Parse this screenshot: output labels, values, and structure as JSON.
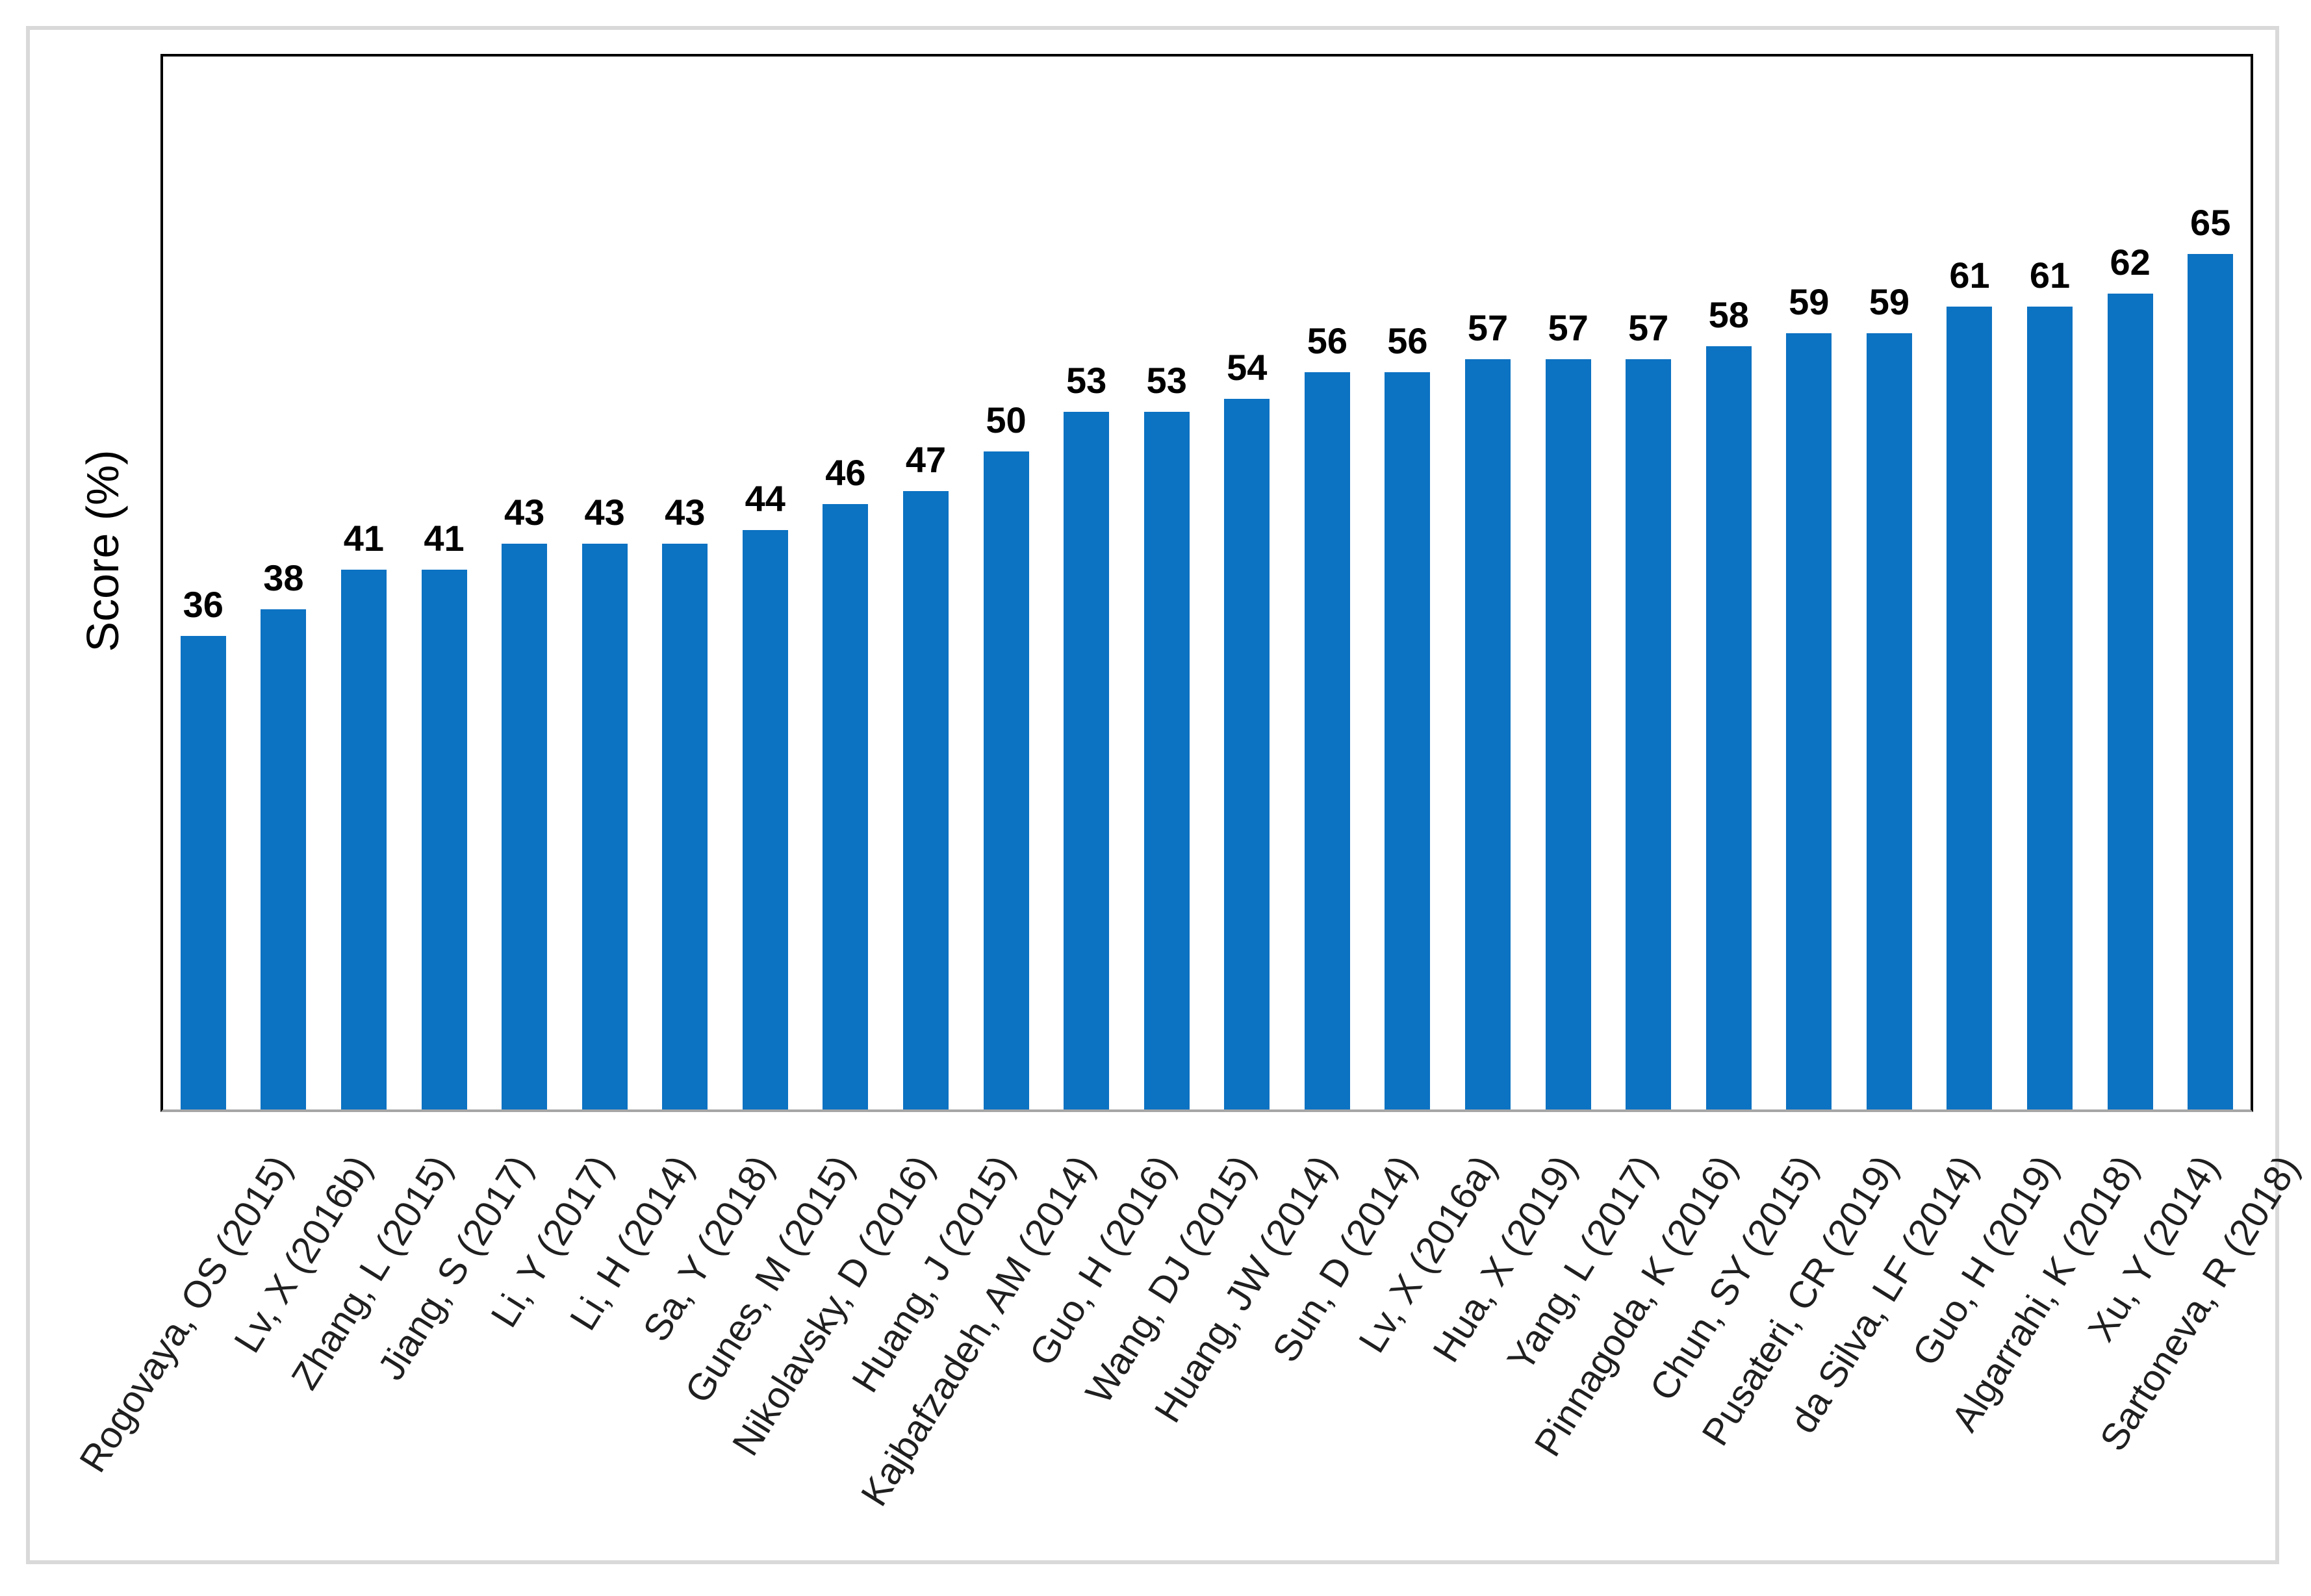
{
  "chart_data": {
    "type": "bar",
    "title": "",
    "xlabel": "",
    "ylabel": "Score (%)",
    "ylim": [
      0,
      80
    ],
    "grid": false,
    "legend": null,
    "bar_color": "#0c72c2",
    "axis_line_color": "#a6a6a6",
    "plot_border_color": "#000000",
    "frame_border_color": "#d9d9d9",
    "value_label_color": "#000000",
    "category_label_color": "#1f1f1f",
    "categories": [
      "Rogovaya, OS (2015)",
      "Lv, X (2016b)",
      "Zhang, L (2015)",
      "Jiang, S (2017)",
      "Li, Y (2017)",
      "Li, H (2014)",
      "Sa, Y (2018)",
      "Gunes, M (2015)",
      "Nikolavsky, D (2016)",
      "Huang, J (2015)",
      "Kajbafzadeh, AM (2014)",
      "Guo, H (2016)",
      "Wang, DJ (2015)",
      "Huang, JW (2014)",
      "Sun, D (2014)",
      "Lv, X (2016a)",
      "Hua, X (2019)",
      "Yang, L (2017)",
      "Pinnagoda, K (2016)",
      "Chun, SY (2015)",
      "Pusateri, CR (2019)",
      "da Silva, LF (2014)",
      "Guo, H (2019)",
      "Algarrahi, K (2018)",
      "Xu, Y (2014)",
      "Sartoneva, R (2018)"
    ],
    "values": [
      36,
      38,
      41,
      41,
      43,
      43,
      43,
      44,
      46,
      47,
      50,
      53,
      53,
      54,
      56,
      56,
      57,
      57,
      57,
      58,
      59,
      59,
      61,
      61,
      62,
      65
    ]
  }
}
